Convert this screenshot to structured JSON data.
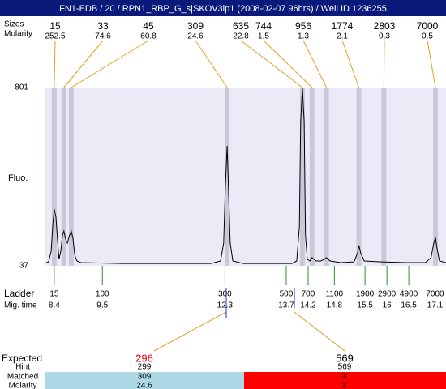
{
  "chart_data": {
    "type": "line",
    "title": "FN1-EDB / 20 / RPN1_RBP_G_s|SKOV3ip1 (2008-02-07 96hrs) / Well ID 1236255",
    "ylabel": "Fluo.",
    "ylim": [
      37,
      801
    ],
    "yticks": [
      801,
      37
    ],
    "xlim": [
      8.18,
      17.35
    ],
    "peaks": {
      "size_label": "Sizes",
      "molarity_label": "Molarity",
      "sizes": [
        15,
        33,
        45,
        309,
        635,
        744,
        956,
        1774,
        2803,
        7000
      ],
      "molarity": [
        252.5,
        74.6,
        60.8,
        24.6,
        22.8,
        1.5,
        1.3,
        2.1,
        0.3,
        0.5
      ],
      "times": [
        8.4,
        8.62,
        8.79,
        12.35,
        14.07,
        14.29,
        14.62,
        15.36,
        15.93,
        17.11
      ]
    },
    "ladder": {
      "label": "Ladder",
      "time_label": "Mig. time",
      "sizes": [
        15,
        100,
        300,
        500,
        700,
        1100,
        1900,
        2900,
        4900,
        7000
      ],
      "times": [
        8.4,
        9.5,
        12.3,
        13.7,
        14.2,
        14.8,
        15.5,
        16,
        16.5,
        17.1
      ]
    },
    "trace": {
      "color": "#000000",
      "x": [
        8.18,
        8.27,
        8.33,
        8.37,
        8.4,
        8.44,
        8.48,
        8.51,
        8.55,
        8.59,
        8.62,
        8.66,
        8.7,
        8.74,
        8.79,
        8.83,
        8.87,
        8.92,
        9.01,
        9.94,
        10.87,
        11.98,
        12.2,
        12.27,
        12.31,
        12.35,
        12.38,
        12.42,
        12.48,
        12.72,
        13.83,
        13.94,
        14.0,
        14.03,
        14.07,
        14.11,
        14.14,
        14.18,
        14.24,
        14.29,
        14.38,
        14.49,
        14.57,
        14.62,
        14.7,
        14.94,
        15.25,
        15.33,
        15.36,
        15.4,
        15.48,
        15.87,
        16.42,
        16.88,
        17.01,
        17.07,
        17.11,
        17.14,
        17.2,
        17.35
      ],
      "values": [
        47,
        54,
        100,
        221,
        280,
        245,
        134,
        65,
        100,
        169,
        186,
        152,
        134,
        162,
        186,
        152,
        82,
        58,
        51,
        47,
        47,
        47,
        58,
        134,
        377,
        551,
        377,
        134,
        58,
        47,
        47,
        58,
        204,
        655,
        801,
        655,
        169,
        65,
        58,
        72,
        58,
        58,
        65,
        72,
        58,
        51,
        54,
        93,
        124,
        93,
        58,
        54,
        51,
        51,
        72,
        134,
        159,
        117,
        58,
        51
      ]
    },
    "expected": {
      "row_labels": [
        "Expected",
        "Hint",
        "Matched",
        "Molarity"
      ],
      "columns": [
        {
          "expected": 296,
          "hint": 299,
          "matched": 309,
          "molarity": 24.6
        },
        {
          "expected": 569,
          "hint": 569,
          "matched": "X",
          "molarity": "X"
        }
      ]
    }
  }
}
